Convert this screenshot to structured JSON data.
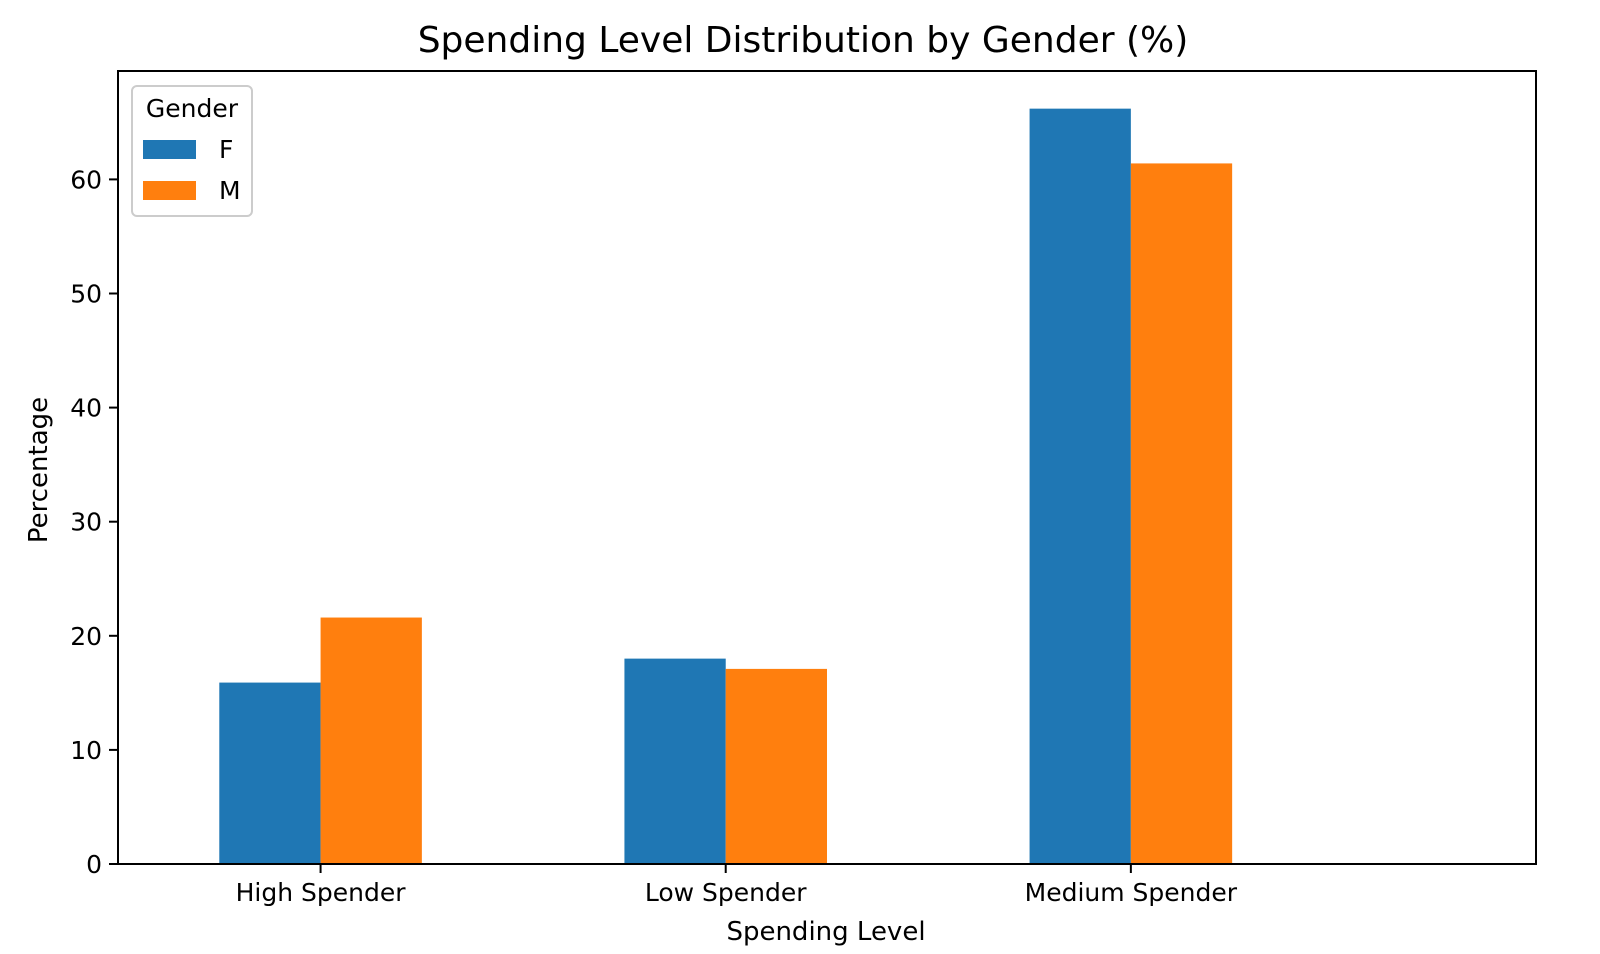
{
  "chart_data": {
    "type": "bar",
    "title": "Spending Level Distribution by Gender (%)",
    "xlabel": "Spending Level",
    "ylabel": "Percentage",
    "categories": [
      "High Spender",
      "Low Spender",
      "Medium Spender"
    ],
    "series": [
      {
        "name": "F",
        "color": "#1f77b4",
        "values": [
          15.9,
          18.0,
          66.2
        ]
      },
      {
        "name": "M",
        "color": "#ff7f0e",
        "values": [
          21.6,
          17.1,
          61.4
        ]
      }
    ],
    "ylim": [
      0,
      69.5
    ],
    "yticks": [
      0,
      10,
      20,
      30,
      40,
      50,
      60
    ],
    "ytick_labels": [
      "0",
      "10",
      "20",
      "30",
      "40",
      "50",
      "60"
    ],
    "legend": {
      "title": "Gender",
      "placement": "upper-left"
    },
    "grid": false
  }
}
